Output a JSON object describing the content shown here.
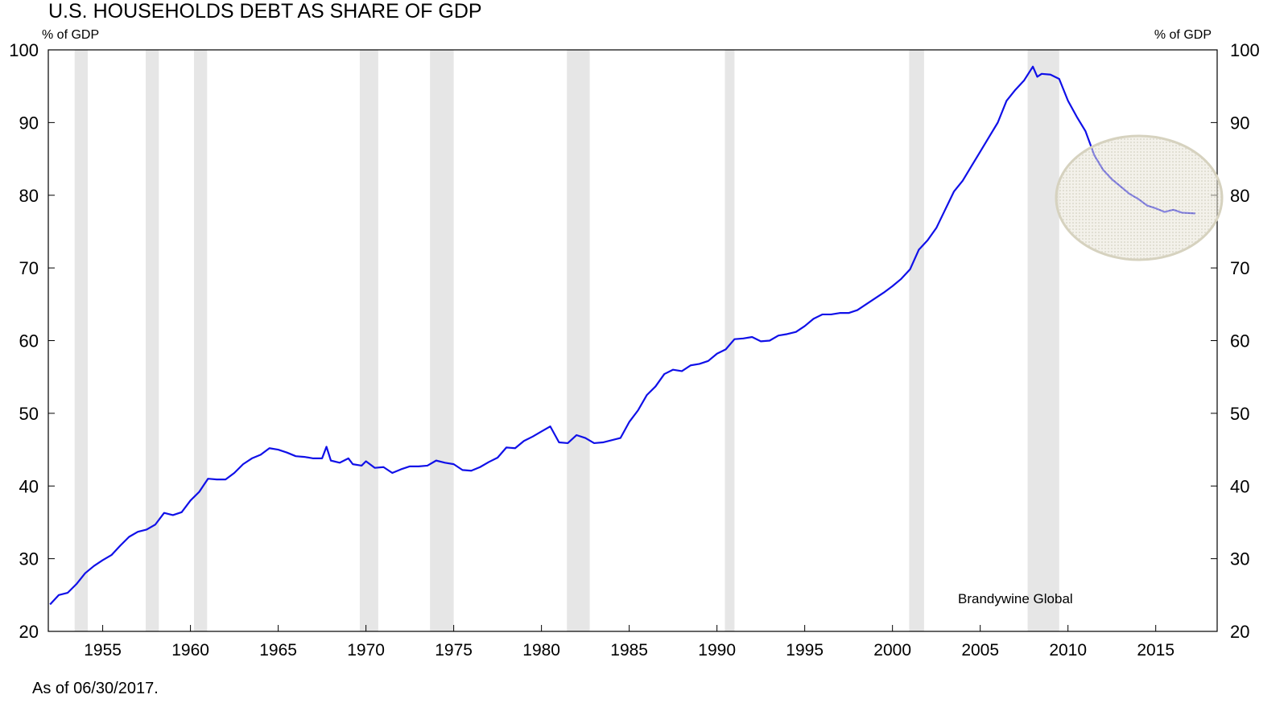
{
  "chart_data": {
    "type": "line",
    "title": "U.S. HOUSEHOLDS DEBT AS SHARE OF GDP",
    "y_label": "% of GDP",
    "y2_label": "% of GDP",
    "source": "Brandywine Global",
    "note": "As of 06/30/2017.",
    "color": "#1010e8",
    "xlim": [
      1951.9,
      2018.5
    ],
    "xticks": [
      1955,
      1960,
      1965,
      1970,
      1975,
      1980,
      1985,
      1990,
      1995,
      2000,
      2005,
      2010,
      2015
    ],
    "ylim": [
      20,
      100
    ],
    "yticks": [
      20,
      30,
      40,
      50,
      60,
      70,
      80,
      90,
      100
    ],
    "y2lim": [
      20,
      100
    ],
    "y2ticks": [
      20,
      30,
      40,
      50,
      60,
      70,
      80,
      90,
      100
    ],
    "recessions": [
      [
        1953.4,
        1954.15
      ],
      [
        1957.45,
        1958.2
      ],
      [
        1960.2,
        1960.95
      ],
      [
        1969.65,
        1970.7
      ],
      [
        1973.65,
        1975.0
      ],
      [
        1981.45,
        1982.75
      ],
      [
        1990.45,
        1991.0
      ],
      [
        2000.95,
        2001.8
      ],
      [
        2007.7,
        2009.5
      ]
    ],
    "x": [
      1952.0,
      1952.5,
      1953.0,
      1953.5,
      1954.0,
      1954.5,
      1955.0,
      1955.5,
      1956.0,
      1956.5,
      1957.0,
      1957.5,
      1958.0,
      1958.5,
      1959.0,
      1959.5,
      1960.0,
      1960.5,
      1961.0,
      1961.5,
      1962.0,
      1962.5,
      1963.0,
      1963.5,
      1964.0,
      1964.5,
      1965.0,
      1965.5,
      1966.0,
      1966.5,
      1967.0,
      1967.5,
      1967.75,
      1968.0,
      1968.5,
      1969.0,
      1969.25,
      1969.75,
      1970.0,
      1970.5,
      1971.0,
      1971.5,
      1972.0,
      1972.5,
      1973.0,
      1973.5,
      1974.0,
      1974.5,
      1975.0,
      1975.5,
      1976.0,
      1976.5,
      1977.0,
      1977.5,
      1978.0,
      1978.5,
      1979.0,
      1979.5,
      1980.0,
      1980.5,
      1981.0,
      1981.5,
      1982.0,
      1982.5,
      1983.0,
      1983.5,
      1984.0,
      1984.5,
      1985.0,
      1985.5,
      1986.0,
      1986.5,
      1987.0,
      1987.5,
      1988.0,
      1988.5,
      1989.0,
      1989.5,
      1990.0,
      1990.5,
      1991.0,
      1991.5,
      1992.0,
      1992.5,
      1993.0,
      1993.5,
      1994.0,
      1994.5,
      1995.0,
      1995.5,
      1996.0,
      1996.5,
      1997.0,
      1997.5,
      1998.0,
      1998.5,
      1999.0,
      1999.5,
      2000.0,
      2000.5,
      2001.0,
      2001.5,
      2002.0,
      2002.5,
      2003.0,
      2003.5,
      2004.0,
      2004.5,
      2005.0,
      2005.5,
      2006.0,
      2006.5,
      2007.0,
      2007.5,
      2008.0,
      2008.25,
      2008.5,
      2009.0,
      2009.5,
      2010.0,
      2010.5,
      2011.0,
      2011.5,
      2012.0,
      2012.5,
      2013.0,
      2013.5,
      2014.0,
      2014.5,
      2015.0,
      2015.5,
      2016.0,
      2016.5,
      2017.25
    ],
    "values": [
      23.7,
      25.0,
      25.3,
      26.5,
      28.0,
      29.0,
      29.8,
      30.5,
      31.8,
      33.0,
      33.7,
      34.0,
      34.7,
      36.3,
      36.0,
      36.4,
      38.0,
      39.2,
      41.0,
      40.9,
      40.9,
      41.8,
      43.0,
      43.8,
      44.3,
      45.2,
      45.0,
      44.6,
      44.1,
      44.0,
      43.8,
      43.8,
      45.4,
      43.5,
      43.2,
      43.8,
      43.0,
      42.8,
      43.4,
      42.5,
      42.6,
      41.8,
      42.3,
      42.7,
      42.7,
      42.8,
      43.5,
      43.2,
      43.0,
      42.2,
      42.1,
      42.6,
      43.3,
      43.9,
      45.3,
      45.2,
      46.2,
      46.8,
      47.5,
      48.2,
      46.0,
      45.9,
      47.0,
      46.6,
      45.9,
      46.0,
      46.3,
      46.6,
      48.8,
      50.4,
      52.5,
      53.7,
      55.4,
      56.0,
      55.8,
      56.6,
      56.8,
      57.2,
      58.2,
      58.8,
      60.2,
      60.3,
      60.5,
      59.9,
      60.0,
      60.7,
      60.9,
      61.2,
      62.0,
      63.0,
      63.6,
      63.6,
      63.8,
      63.8,
      64.2,
      65.0,
      65.8,
      66.6,
      67.5,
      68.5,
      69.8,
      72.5,
      73.8,
      75.5,
      78.0,
      80.5,
      82.0,
      84.0,
      86.0,
      88.0,
      90.0,
      93.0,
      94.5,
      95.8,
      97.7,
      96.3,
      96.7,
      96.6,
      96.0,
      93.0,
      90.8,
      88.8,
      85.5,
      83.5,
      82.2,
      81.2,
      80.2,
      79.5,
      78.6,
      78.2,
      77.7,
      78.0,
      77.6,
      77.5
    ]
  }
}
